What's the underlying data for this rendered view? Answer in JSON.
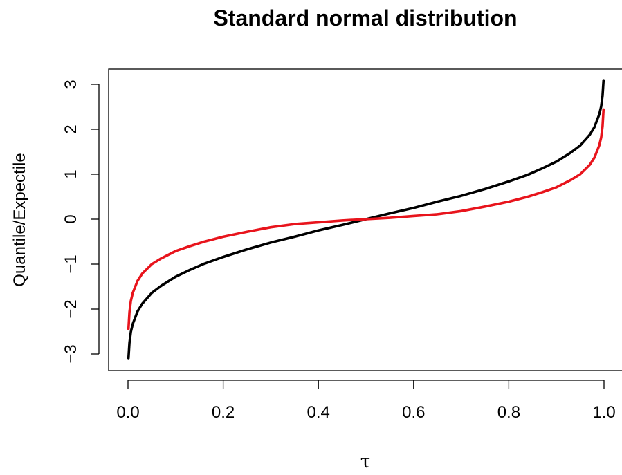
{
  "chart_data": {
    "type": "line",
    "title": "Standard normal distribution",
    "xlabel": "τ",
    "ylabel": "Quantile/Expectile",
    "xlim": [
      0,
      1
    ],
    "ylim": [
      -3.1,
      3.1
    ],
    "xticks": [
      0.0,
      0.2,
      0.4,
      0.6,
      0.8,
      1.0
    ],
    "xtick_labels": [
      "0.0",
      "0.2",
      "0.4",
      "0.6",
      "0.8",
      "1.0"
    ],
    "yticks": [
      -3,
      -2,
      -1,
      0,
      1,
      2,
      3
    ],
    "ytick_labels": [
      "−3",
      "−2",
      "−1",
      "0",
      "1",
      "2",
      "3"
    ],
    "grid": false,
    "legend": "none",
    "series": [
      {
        "color": "#000000",
        "x": [
          0.001,
          0.003,
          0.006,
          0.01,
          0.02,
          0.03,
          0.05,
          0.07,
          0.1,
          0.13,
          0.16,
          0.2,
          0.25,
          0.3,
          0.35,
          0.4,
          0.45,
          0.5,
          0.55,
          0.6,
          0.65,
          0.7,
          0.75,
          0.8,
          0.84,
          0.87,
          0.9,
          0.93,
          0.95,
          0.97,
          0.98,
          0.99,
          0.994,
          0.997,
          0.999
        ],
        "y": [
          -3.09,
          -2.75,
          -2.51,
          -2.33,
          -2.05,
          -1.88,
          -1.64,
          -1.48,
          -1.28,
          -1.13,
          -0.99,
          -0.84,
          -0.67,
          -0.52,
          -0.39,
          -0.25,
          -0.13,
          0.0,
          0.13,
          0.25,
          0.39,
          0.52,
          0.67,
          0.84,
          0.99,
          1.13,
          1.28,
          1.48,
          1.64,
          1.88,
          2.05,
          2.33,
          2.51,
          2.75,
          3.09
        ]
      },
      {
        "color": "#e8141c",
        "x": [
          0.001,
          0.003,
          0.006,
          0.01,
          0.02,
          0.03,
          0.05,
          0.07,
          0.1,
          0.13,
          0.16,
          0.2,
          0.25,
          0.3,
          0.35,
          0.4,
          0.45,
          0.5,
          0.55,
          0.6,
          0.65,
          0.7,
          0.75,
          0.8,
          0.84,
          0.87,
          0.9,
          0.93,
          0.95,
          0.97,
          0.98,
          0.99,
          0.994,
          0.997,
          0.999
        ],
        "y": [
          -2.44,
          -2.07,
          -1.82,
          -1.64,
          -1.37,
          -1.21,
          -1.0,
          -0.87,
          -0.71,
          -0.6,
          -0.5,
          -0.39,
          -0.28,
          -0.18,
          -0.11,
          -0.07,
          -0.03,
          0.0,
          0.03,
          0.07,
          0.11,
          0.18,
          0.28,
          0.39,
          0.5,
          0.6,
          0.71,
          0.87,
          1.0,
          1.21,
          1.37,
          1.64,
          1.82,
          2.07,
          2.44
        ]
      }
    ]
  }
}
